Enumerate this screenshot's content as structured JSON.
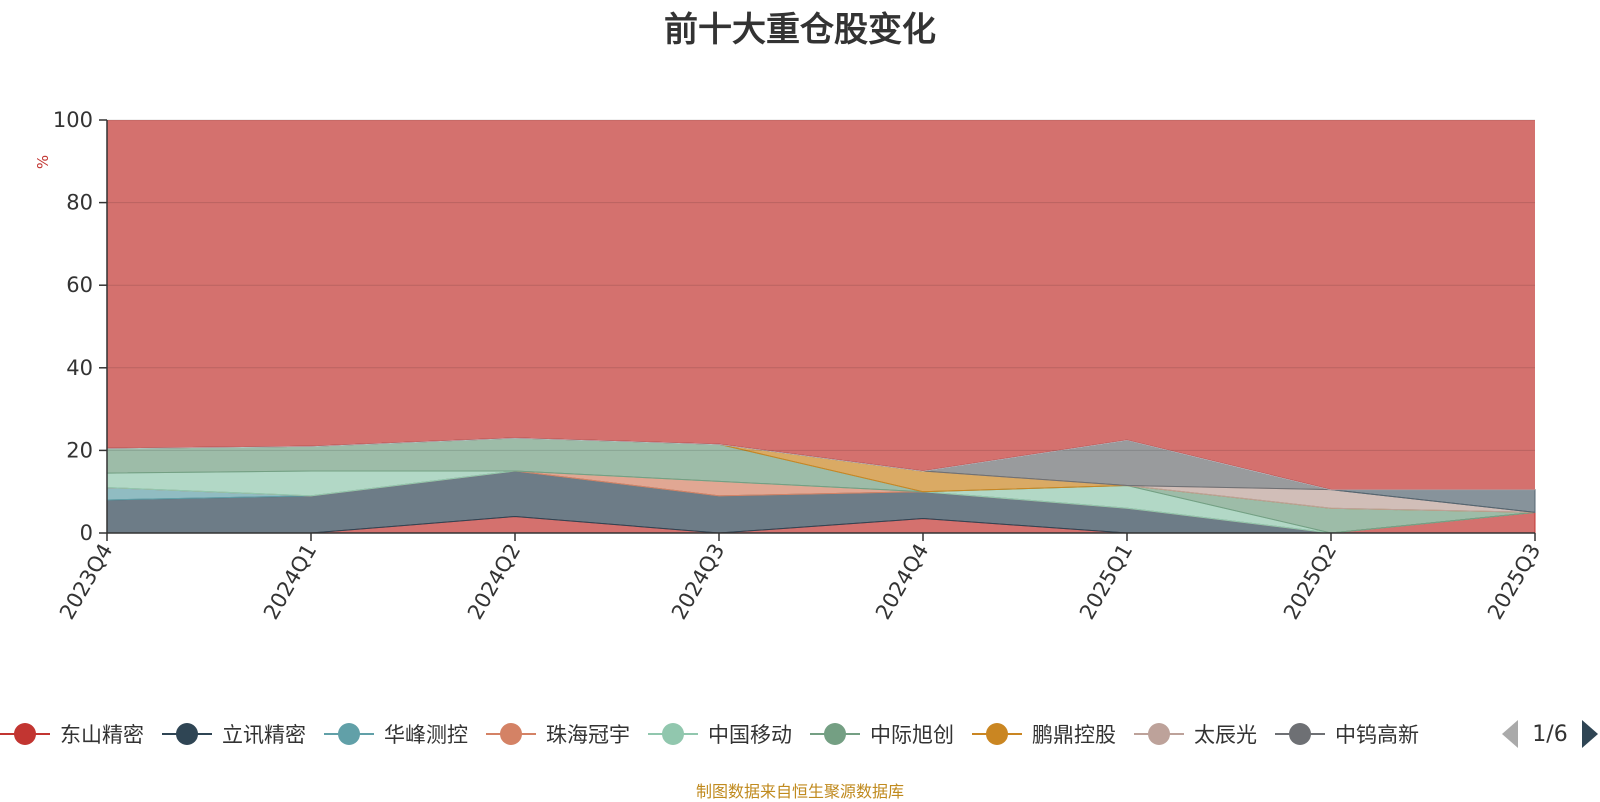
{
  "chart_data": {
    "type": "area",
    "title": "前十大重仓股变化",
    "ylabel": "%",
    "xlabel": "",
    "ylim": [
      0,
      100
    ],
    "yticks": [
      0,
      20,
      40,
      60,
      80,
      100
    ],
    "categories": [
      "2023Q4",
      "2024Q1",
      "2024Q2",
      "2024Q3",
      "2024Q4",
      "2025Q1",
      "2025Q2",
      "2025Q3"
    ],
    "stacked": true,
    "grid": true,
    "legend_position": "bottom",
    "series": [
      {
        "name": "东山精密",
        "color": "#c23531",
        "values": [
          0,
          0,
          4,
          0,
          3.5,
          0,
          0,
          5
        ]
      },
      {
        "name": "立讯精密",
        "color": "#2f4554",
        "values": [
          8,
          9,
          11,
          9,
          6.5,
          6,
          0,
          0
        ]
      },
      {
        "name": "华峰测控",
        "color": "#61a0a8",
        "values": [
          3,
          0,
          0,
          0,
          0,
          0,
          0,
          0
        ]
      },
      {
        "name": "珠海冠宇",
        "color": "#d48265",
        "values": [
          0,
          0,
          0,
          3.5,
          0,
          0,
          0,
          0
        ]
      },
      {
        "name": "中国移动",
        "color": "#91c7ae",
        "values": [
          3.5,
          6,
          0,
          0,
          0,
          5.5,
          0,
          0
        ]
      },
      {
        "name": "中际旭创",
        "color": "#749f83",
        "values": [
          6,
          6,
          8,
          9,
          0,
          0,
          6,
          0
        ]
      },
      {
        "name": "鹏鼎控股",
        "color": "#ca8622",
        "values": [
          0,
          0,
          0,
          0,
          5,
          0,
          0,
          0
        ]
      },
      {
        "name": "太辰光",
        "color": "#bda29a",
        "values": [
          0,
          0,
          0,
          0,
          0,
          0,
          4.5,
          0
        ]
      },
      {
        "name": "中钨高新",
        "color": "#6e7074",
        "values": [
          0,
          0,
          0,
          0,
          0,
          11,
          0,
          0
        ]
      }
    ],
    "other_bands": [
      {
        "color": "#546570",
        "values": [
          0,
          0,
          0,
          0,
          0,
          0,
          0,
          5.5
        ]
      },
      {
        "color": "#c4ccd3",
        "values": [
          0,
          0,
          0,
          0,
          0,
          0,
          0,
          0
        ]
      }
    ],
    "remaining_area_color": "#c23531"
  },
  "legend": {
    "items": [
      {
        "name": "东山精密",
        "color": "#c23531"
      },
      {
        "name": "立讯精密",
        "color": "#2f4554"
      },
      {
        "name": "华峰测控",
        "color": "#61a0a8"
      },
      {
        "name": "珠海冠宇",
        "color": "#d48265"
      },
      {
        "name": "中国移动",
        "color": "#91c7ae"
      },
      {
        "name": "中际旭创",
        "color": "#749f83"
      },
      {
        "name": "鹏鼎控股",
        "color": "#ca8622"
      },
      {
        "name": "太辰光",
        "color": "#bda29a"
      },
      {
        "name": "中钨高新",
        "color": "#6e7074"
      }
    ],
    "pager": "1/6",
    "pager_color": "#2f4554",
    "pager_inactive_color": "#aaaaaa"
  },
  "source_note": "制图数据来自恒生聚源数据库"
}
